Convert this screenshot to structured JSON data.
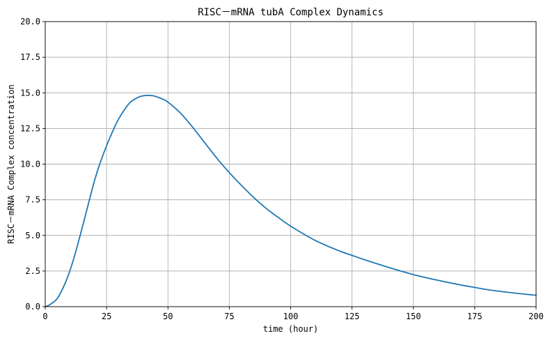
{
  "chart_data": {
    "type": "line",
    "title": "RISC－mRNA tubA Complex Dynamics",
    "xlabel": "time (hour)",
    "ylabel": "RISC－mRNA Complex concentration",
    "xlim": [
      0,
      200
    ],
    "ylim": [
      0,
      20
    ],
    "x_ticks": [
      0,
      25,
      50,
      75,
      100,
      125,
      150,
      175,
      200
    ],
    "x_tick_labels": [
      "0",
      "25",
      "50",
      "75",
      "100",
      "125",
      "150",
      "175",
      "200"
    ],
    "y_ticks": [
      0,
      2.5,
      5,
      7.5,
      10,
      12.5,
      15,
      17.5,
      20
    ],
    "y_tick_labels": [
      "0.0",
      "2.5",
      "5.0",
      "7.5",
      "10.0",
      "12.5",
      "15.0",
      "17.5",
      "20.0"
    ],
    "grid": true,
    "legend": "none",
    "line_color": "#1f77b4",
    "series": [
      {
        "x": [
          0,
          2,
          5,
          8,
          10,
          12,
          15,
          18,
          20,
          22,
          25,
          28,
          30,
          33,
          35,
          38,
          40,
          43,
          45,
          48,
          50,
          55,
          60,
          65,
          70,
          75,
          80,
          85,
          90,
          95,
          100,
          110,
          120,
          125,
          130,
          140,
          150,
          160,
          170,
          175,
          180,
          190,
          200
        ],
        "y": [
          0,
          0.15,
          0.6,
          1.6,
          2.5,
          3.6,
          5.5,
          7.5,
          8.8,
          9.9,
          11.3,
          12.5,
          13.2,
          14.0,
          14.4,
          14.7,
          14.8,
          14.82,
          14.75,
          14.55,
          14.35,
          13.6,
          12.6,
          11.5,
          10.4,
          9.4,
          8.5,
          7.65,
          6.9,
          6.25,
          5.65,
          4.65,
          3.9,
          3.6,
          3.3,
          2.75,
          2.25,
          1.85,
          1.5,
          1.35,
          1.2,
          0.98,
          0.8
        ]
      }
    ]
  }
}
